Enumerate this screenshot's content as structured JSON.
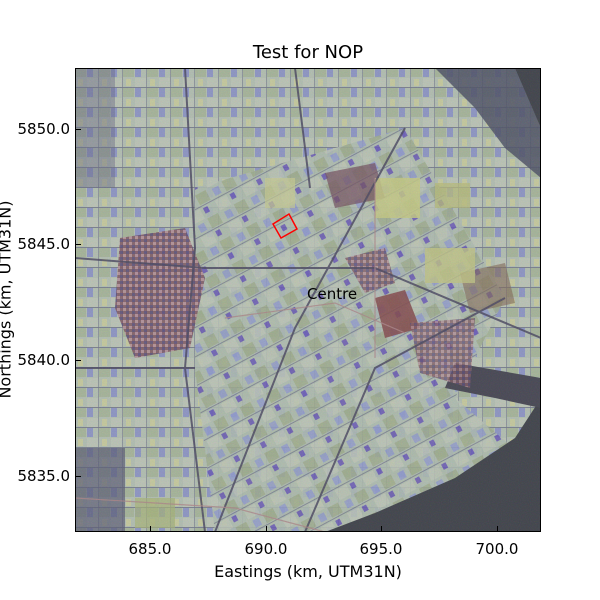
{
  "map": {
    "title": "Test for NOP",
    "xlabel": "Eastings (km, UTM31N)",
    "ylabel": "Northings (km, UTM31N)",
    "xticks": [
      "685.0",
      "690.0",
      "695.0",
      "700.0"
    ],
    "yticks": [
      "5850.0",
      "5845.0",
      "5840.0",
      "5835.0"
    ],
    "xrange": [
      681.8,
      702.0
    ],
    "yrange": [
      5832.7,
      5852.6
    ],
    "label": "Centre",
    "colors": {
      "water": "#2b2d33",
      "field_pale": "#b9c7b5",
      "field_green": "#9fb07f",
      "field_yellow": "#c9cc7a",
      "field_blue": "#6f7fd0",
      "field_purple": "#6a3fb8",
      "urban": "#7a3a3a",
      "marker": "#ff0000"
    }
  }
}
